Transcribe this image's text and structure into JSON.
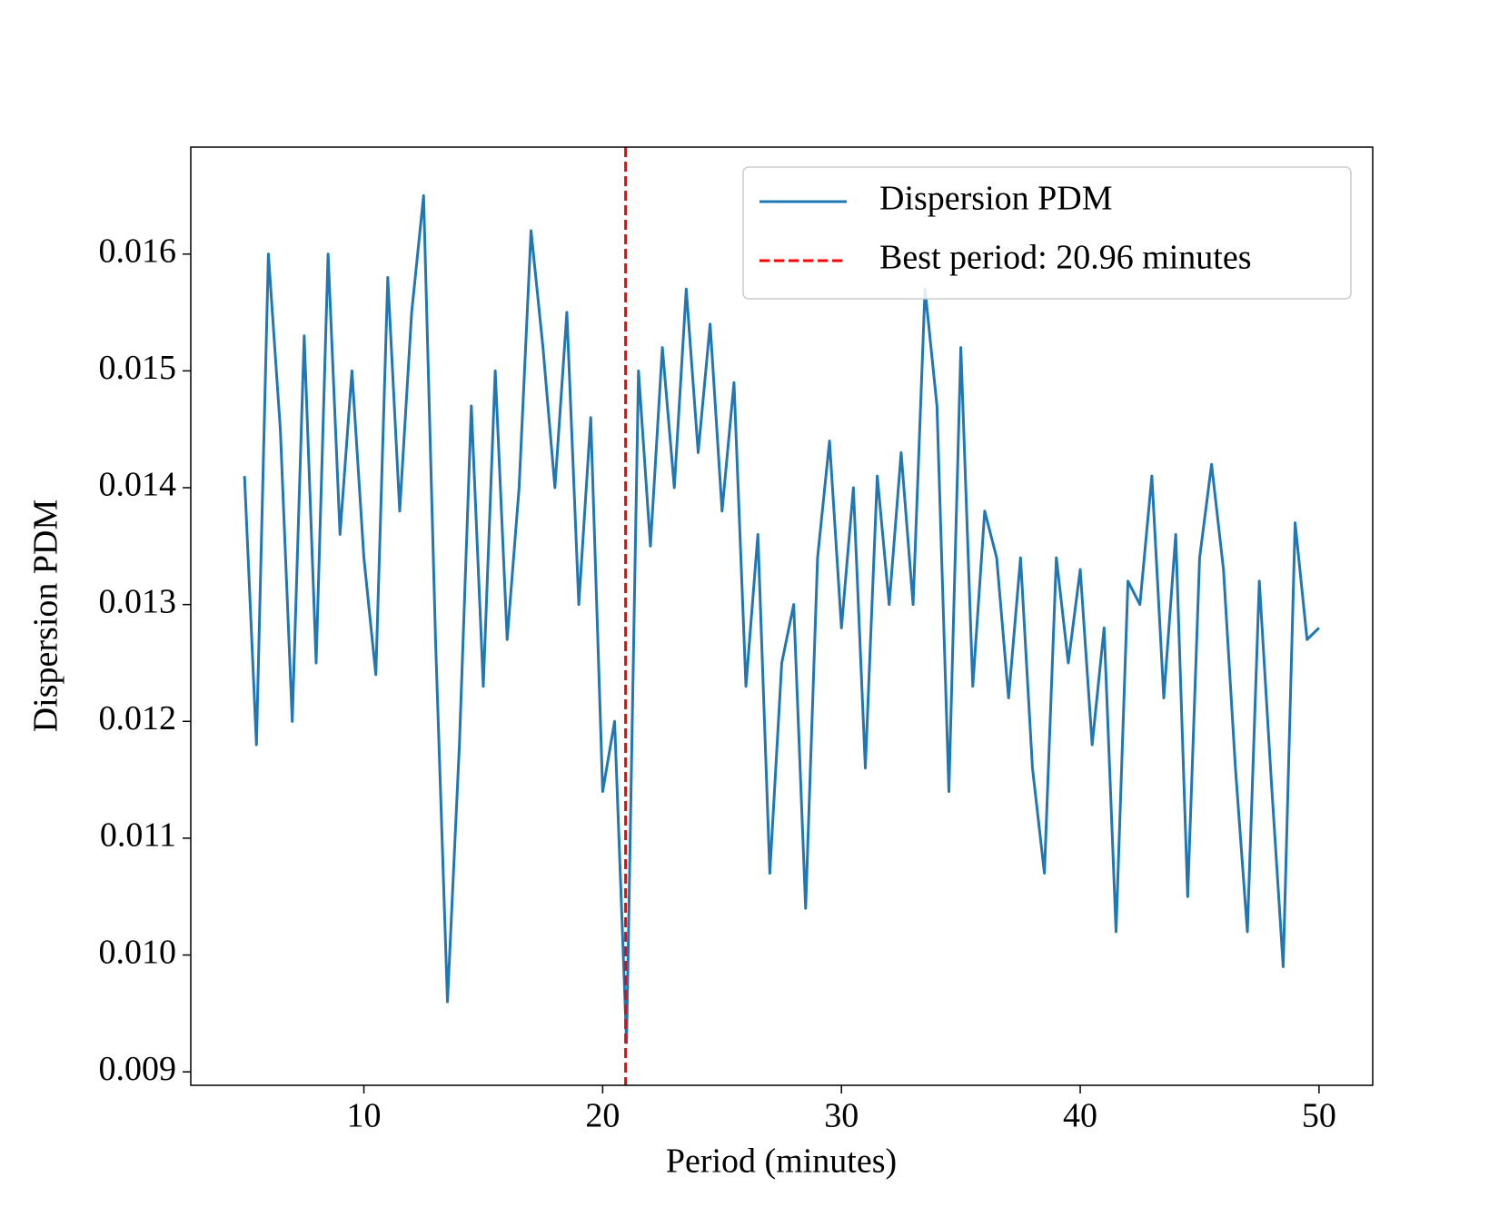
{
  "chart_data": {
    "type": "line",
    "xlabel": "Period (minutes)",
    "ylabel": "Dispersion PDM",
    "x": [
      5,
      5.5,
      6,
      6.5,
      7,
      7.5,
      8,
      8.5,
      9,
      9.5,
      10,
      10.5,
      11,
      11.5,
      12,
      12.5,
      13,
      13.5,
      14,
      14.5,
      15,
      15.5,
      16,
      16.5,
      17,
      17.5,
      18,
      18.5,
      19,
      19.5,
      20,
      20.5,
      21,
      21.5,
      22,
      22.5,
      23,
      23.5,
      24,
      24.5,
      25,
      25.5,
      26,
      26.5,
      27,
      27.5,
      28,
      28.5,
      29,
      29.5,
      30,
      30.5,
      31,
      31.5,
      32,
      32.5,
      33,
      33.5,
      34,
      34.5,
      35,
      35.5,
      36,
      36.5,
      37,
      37.5,
      38,
      38.5,
      39,
      39.5,
      40,
      40.5,
      41,
      41.5,
      42,
      42.5,
      43,
      43.5,
      44,
      44.5,
      45,
      45.5,
      46,
      46.5,
      47,
      47.5,
      48,
      48.5,
      49,
      49.5,
      50
    ],
    "series": [
      {
        "name": "Dispersion PDM",
        "color": "#1f77b4",
        "values": [
          0.0141,
          0.0118,
          0.016,
          0.0145,
          0.012,
          0.0153,
          0.0125,
          0.016,
          0.0136,
          0.015,
          0.0134,
          0.0124,
          0.0158,
          0.0138,
          0.0155,
          0.0165,
          0.0127,
          0.0096,
          0.0118,
          0.0147,
          0.0123,
          0.015,
          0.0127,
          0.014,
          0.0162,
          0.0152,
          0.014,
          0.0155,
          0.013,
          0.0146,
          0.0114,
          0.012,
          0.00925,
          0.015,
          0.0135,
          0.0152,
          0.014,
          0.0157,
          0.0143,
          0.0154,
          0.0138,
          0.0149,
          0.0123,
          0.0136,
          0.0107,
          0.0125,
          0.013,
          0.0104,
          0.0134,
          0.0144,
          0.0128,
          0.014,
          0.0116,
          0.0141,
          0.013,
          0.0143,
          0.013,
          0.0157,
          0.0147,
          0.0114,
          0.0152,
          0.0123,
          0.0138,
          0.0134,
          0.0122,
          0.0134,
          0.0116,
          0.0107,
          0.0134,
          0.0125,
          0.0133,
          0.0118,
          0.0128,
          0.0102,
          0.0132,
          0.013,
          0.0141,
          0.0122,
          0.0136,
          0.0105,
          0.0134,
          0.0142,
          0.0133,
          0.0116,
          0.0102,
          0.0132,
          0.0115,
          0.0099,
          0.0137,
          0.0127,
          0.0128
        ]
      }
    ],
    "reference_line": {
      "name": "Best period: 20.96 minutes",
      "x": 20.96,
      "color": "#ff0000"
    },
    "xlim": [
      2.75,
      52.25
    ],
    "ylim": [
      0.008885,
      0.016915
    ],
    "xticks": [
      10,
      20,
      30,
      40,
      50
    ],
    "yticks": [
      0.009,
      {
        "value": 0.01,
        "label": "0.010"
      },
      0.011,
      0.012,
      0.013,
      0.014,
      0.015,
      0.016
    ],
    "legend": "upper right"
  }
}
